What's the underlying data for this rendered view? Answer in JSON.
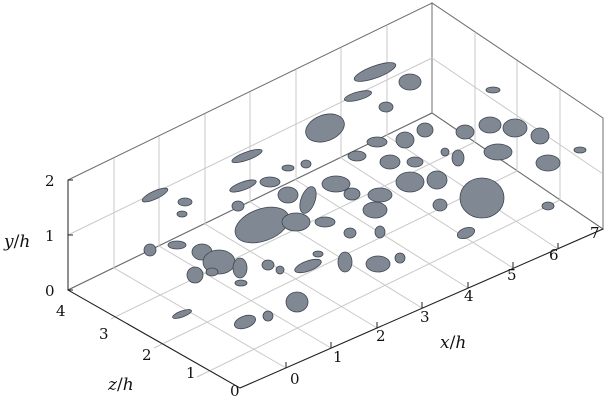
{
  "figure": {
    "x_axis": {
      "label_var": "x",
      "label_den": "h",
      "ticks": [
        "0",
        "1",
        "2",
        "3",
        "4",
        "5",
        "6",
        "7"
      ]
    },
    "y_axis": {
      "label_var": "y",
      "label_den": "h",
      "ticks": [
        "0",
        "1",
        "2"
      ]
    },
    "z_axis": {
      "label_var": "z",
      "label_den": "h",
      "ticks": [
        "0",
        "1",
        "2",
        "3",
        "4"
      ]
    },
    "surface_color": "#7f8893",
    "surface_edge_color": "#3f4650",
    "description": "3D isosurfaces of vortical structures in a channel box"
  }
}
